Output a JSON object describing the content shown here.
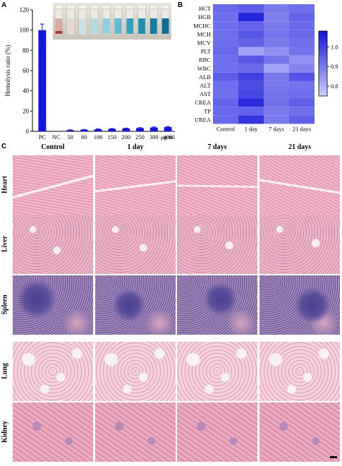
{
  "panels": {
    "a": "A",
    "b": "B",
    "c": "C"
  },
  "chart_data": [
    {
      "type": "bar",
      "ylabel": "Hemolysis ratio (%)",
      "xlabel_unit": "μg/ml",
      "ylim": [
        0,
        120
      ],
      "yticks": [
        0,
        20,
        40,
        60,
        80,
        100,
        120
      ],
      "categories": [
        "PC",
        "NC",
        "50",
        "80",
        "100",
        "150",
        "200",
        "250",
        "300",
        "400"
      ],
      "values": [
        100,
        0,
        1.2,
        1.6,
        2.0,
        2.4,
        2.8,
        3.2,
        3.8,
        4.2
      ],
      "errors": [
        6,
        0,
        0.3,
        0.3,
        0.4,
        0.4,
        0.4,
        0.5,
        0.5,
        0.6
      ],
      "bar_color": "#1212e6",
      "inset": "photo of blood-sample tubes"
    },
    {
      "type": "heatmap",
      "rows": [
        "HCT",
        "HGB",
        "MCHC",
        "MCH",
        "MCV",
        "PLT",
        "RBC",
        "WBC",
        "ALB",
        "ALT",
        "AST",
        "CREA",
        "TP",
        "UREA"
      ],
      "columns": [
        "Control",
        "1 day",
        "7 days",
        "21 days"
      ],
      "values": [
        [
          0.93,
          0.95,
          0.9,
          0.92
        ],
        [
          0.92,
          1.05,
          0.89,
          0.94
        ],
        [
          0.92,
          0.94,
          0.9,
          0.93
        ],
        [
          0.92,
          0.96,
          0.91,
          0.93
        ],
        [
          0.92,
          0.94,
          0.9,
          0.92
        ],
        [
          0.93,
          0.83,
          0.86,
          0.91
        ],
        [
          0.92,
          0.96,
          0.91,
          0.86
        ],
        [
          0.92,
          0.93,
          0.83,
          0.88
        ],
        [
          0.95,
          1.0,
          0.9,
          0.97
        ],
        [
          0.92,
          0.98,
          0.9,
          0.91
        ],
        [
          0.92,
          0.99,
          0.91,
          0.92
        ],
        [
          0.94,
          1.04,
          0.92,
          0.95
        ],
        [
          0.93,
          0.94,
          0.9,
          0.92
        ],
        [
          0.93,
          1.02,
          0.9,
          0.95
        ]
      ],
      "colorbar_ticks": [
        0.8,
        0.9,
        1.0
      ],
      "color_range": [
        0.75,
        1.08
      ],
      "color_low": "#cfcfff",
      "color_high": "#1414d8"
    }
  ],
  "histology": {
    "columns": [
      "Control",
      "1 day",
      "7 days",
      "21 days"
    ],
    "rows": [
      {
        "label": "Heart",
        "bg": "#f0b6c8",
        "fg": "#dd8aa6"
      },
      {
        "label": "Liver",
        "bg": "#efb2c3",
        "fg": "#b48ab0"
      },
      {
        "label": "Spleen",
        "bg": "#a98ab9",
        "fg": "#5a4f96"
      },
      {
        "label": "Lung",
        "bg": "#f4d2dc",
        "fg": "#e39ab2"
      },
      {
        "label": "Kidney",
        "bg": "#eba9be",
        "fg": "#c27aa0"
      }
    ]
  }
}
